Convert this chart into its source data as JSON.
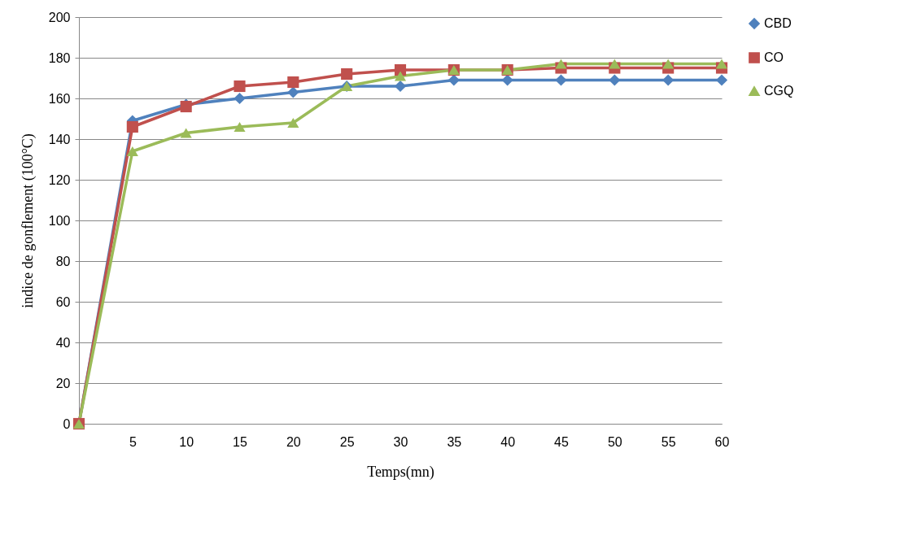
{
  "chart_data": {
    "type": "line",
    "xlabel": "Temps(mn)",
    "ylabel": "indice de gonflement (100°C)",
    "categories": [
      null,
      "5",
      "10",
      "15",
      "20",
      "25",
      "30",
      "35",
      "40",
      "45",
      "50",
      "55",
      "60"
    ],
    "series": [
      {
        "name": "CBD",
        "color": "#4f81bd",
        "marker": "diamond",
        "values": [
          0,
          149,
          157,
          160,
          163,
          166,
          166,
          169,
          169,
          169,
          169,
          169,
          169
        ]
      },
      {
        "name": "CO",
        "color": "#c0504d",
        "marker": "square",
        "values": [
          0,
          146,
          156,
          166,
          168,
          172,
          174,
          174,
          174,
          175,
          175,
          175,
          175
        ]
      },
      {
        "name": "CGQ",
        "color": "#9bbb59",
        "marker": "triangle",
        "values": [
          0,
          134,
          143,
          146,
          148,
          166,
          171,
          174,
          174,
          177,
          177,
          177,
          177
        ]
      }
    ],
    "ylim": [
      0,
      200
    ],
    "yticks": [
      0,
      20,
      40,
      60,
      80,
      100,
      120,
      140,
      160,
      180,
      200
    ],
    "grid": "y",
    "legend": "right",
    "line_style": "solid"
  }
}
